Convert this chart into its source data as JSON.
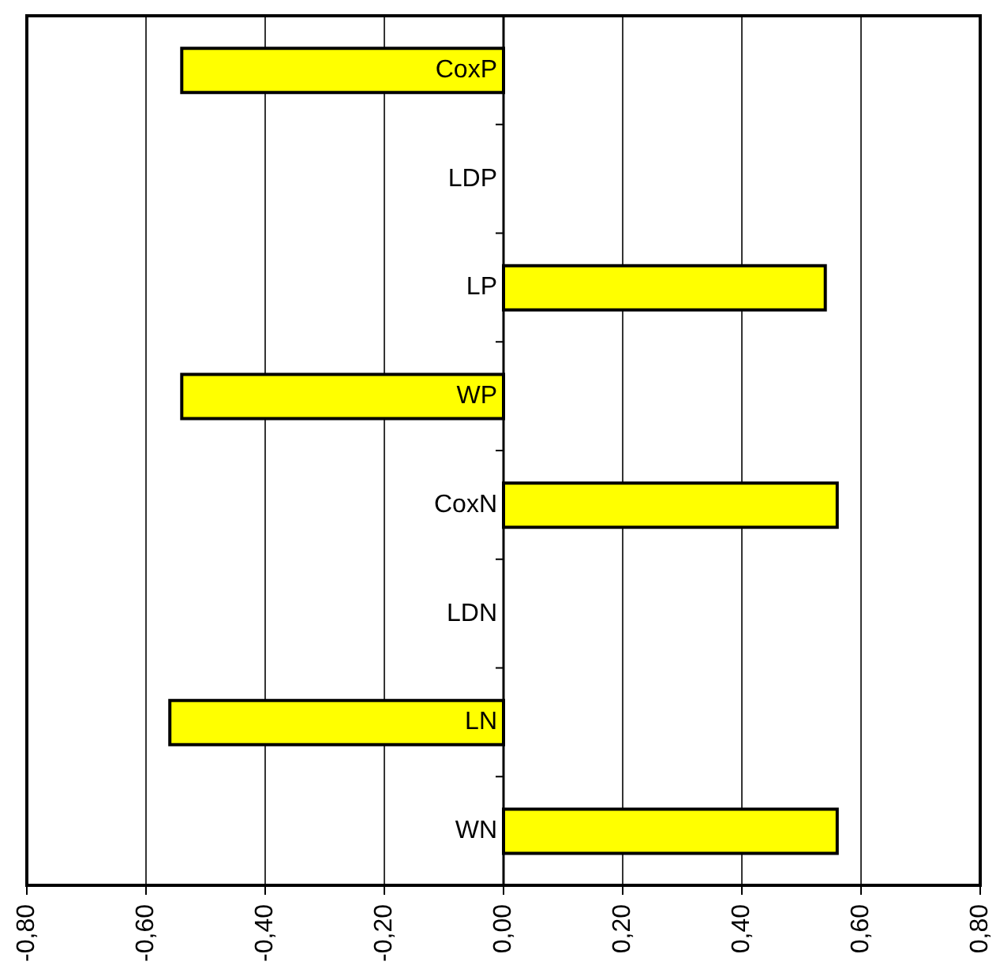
{
  "chart_data": {
    "type": "bar",
    "orientation": "horizontal",
    "categories": [
      "CoxP",
      "LDP",
      "LP",
      "WP",
      "CoxN",
      "LDN",
      "LN",
      "WN"
    ],
    "values": [
      -0.54,
      0,
      0.54,
      -0.54,
      0.56,
      0,
      -0.56,
      0.56
    ],
    "color": "#ffff00",
    "xlim": [
      -0.8,
      0.8
    ],
    "xticks": [
      {
        "value": -0.8,
        "label": "-0,80"
      },
      {
        "value": -0.6,
        "label": "-0,60"
      },
      {
        "value": -0.4,
        "label": "-0,40"
      },
      {
        "value": -0.2,
        "label": "-0,20"
      },
      {
        "value": 0,
        "label": "0,00"
      },
      {
        "value": 0.2,
        "label": "0,20"
      },
      {
        "value": 0.4,
        "label": "0,40"
      },
      {
        "value": 0.6,
        "label": "0,60"
      },
      {
        "value": 0.8,
        "label": "0,80"
      }
    ],
    "grid": "x",
    "legend": false
  }
}
